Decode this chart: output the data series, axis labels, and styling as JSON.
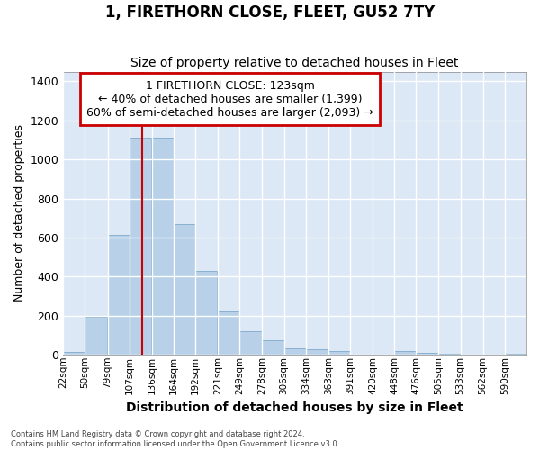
{
  "title": "1, FIRETHORN CLOSE, FLEET, GU52 7TY",
  "subtitle": "Size of property relative to detached houses in Fleet",
  "xlabel": "Distribution of detached houses by size in Fleet",
  "ylabel": "Number of detached properties",
  "footer_line1": "Contains HM Land Registry data © Crown copyright and database right 2024.",
  "footer_line2": "Contains public sector information licensed under the Open Government Licence v3.0.",
  "annotation_line1": "1 FIRETHORN CLOSE: 123sqm",
  "annotation_line2": "← 40% of detached houses are smaller (1,399)",
  "annotation_line3": "60% of semi-detached houses are larger (2,093) →",
  "bar_color": "#b8d0e8",
  "bar_edge_color": "#8ab0d0",
  "bg_color": "#dce8f5",
  "grid_color": "#ffffff",
  "fig_color": "#ffffff",
  "vline_color": "#cc0000",
  "vline_x": 123,
  "categories": [
    "22sqm",
    "50sqm",
    "79sqm",
    "107sqm",
    "136sqm",
    "164sqm",
    "192sqm",
    "221sqm",
    "249sqm",
    "278sqm",
    "306sqm",
    "334sqm",
    "363sqm",
    "391sqm",
    "420sqm",
    "448sqm",
    "476sqm",
    "505sqm",
    "533sqm",
    "562sqm",
    "590sqm"
  ],
  "bin_starts": [
    22,
    50,
    79,
    107,
    136,
    164,
    192,
    221,
    249,
    278,
    306,
    334,
    363,
    391,
    420,
    448,
    476,
    505,
    533,
    562,
    590
  ],
  "bin_width": 28,
  "values": [
    15,
    195,
    615,
    1110,
    1110,
    670,
    430,
    220,
    120,
    75,
    35,
    27,
    20,
    0,
    0,
    20,
    10,
    5,
    0,
    0,
    5
  ],
  "ylim": [
    0,
    1450
  ],
  "yticks": [
    0,
    200,
    400,
    600,
    800,
    1000,
    1200,
    1400
  ]
}
